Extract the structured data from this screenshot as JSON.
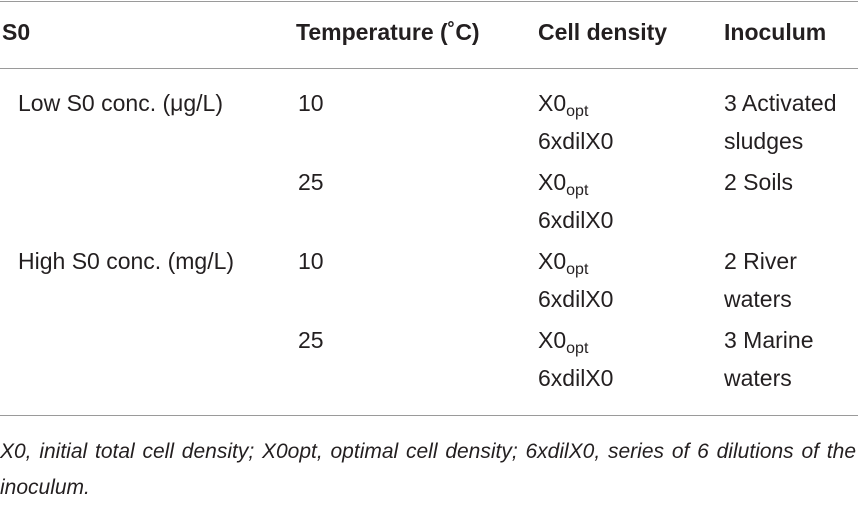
{
  "table": {
    "headers": {
      "s0": "S0",
      "temperature": "Temperature (˚C)",
      "cell_density": "Cell density",
      "inoculum": "Inoculum"
    },
    "rows": [
      {
        "s0": "Low S0 conc. (μg/L)",
        "temperature": "10",
        "density_1_base": "X0",
        "density_1_sub": "opt",
        "density_2": "6xdilX0",
        "inoculum_1": "3 Activated",
        "inoculum_2": "sludges"
      },
      {
        "s0": "",
        "temperature": "25",
        "density_1_base": "X0",
        "density_1_sub": "opt",
        "density_2": "6xdilX0",
        "inoculum_1": "2 Soils",
        "inoculum_2": ""
      },
      {
        "s0": "High S0 conc. (mg/L)",
        "temperature": "10",
        "density_1_base": "X0",
        "density_1_sub": "opt",
        "density_2": "6xdilX0",
        "inoculum_1": "2 River",
        "inoculum_2": "waters"
      },
      {
        "s0": "",
        "temperature": "25",
        "density_1_base": "X0",
        "density_1_sub": "opt",
        "density_2": "6xdilX0",
        "inoculum_1": "3 Marine",
        "inoculum_2": "waters"
      }
    ]
  },
  "footnote": "X0, initial total cell density; X0opt, optimal cell density; 6xdilX0, series of 6 dilutions of the inoculum."
}
